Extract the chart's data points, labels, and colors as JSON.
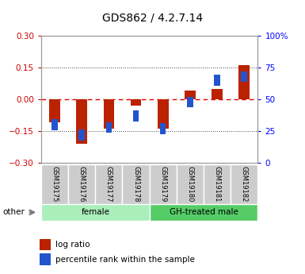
{
  "title": "GDS862 / 4.2.7.14",
  "samples": [
    "GSM19175",
    "GSM19176",
    "GSM19177",
    "GSM19178",
    "GSM19179",
    "GSM19180",
    "GSM19181",
    "GSM19182"
  ],
  "log_ratio": [
    -0.11,
    -0.21,
    -0.14,
    -0.03,
    -0.14,
    0.04,
    0.05,
    0.16
  ],
  "percentile_rank": [
    30,
    22,
    28,
    37,
    27,
    48,
    65,
    68
  ],
  "ylim_left": [
    -0.3,
    0.3
  ],
  "ylim_right": [
    0,
    100
  ],
  "yticks_left": [
    -0.3,
    -0.15,
    0,
    0.15,
    0.3
  ],
  "yticks_right": [
    0,
    25,
    50,
    75,
    100
  ],
  "ytick_labels_right": [
    "0",
    "25",
    "50",
    "75",
    "100%"
  ],
  "groups": [
    {
      "label": "female",
      "start": 0,
      "end": 3,
      "color": "#aaeebb"
    },
    {
      "label": "GH-treated male",
      "start": 4,
      "end": 7,
      "color": "#55cc66"
    }
  ],
  "bar_color": "#bb2200",
  "blue_color": "#2255cc",
  "hline_color": "#dd0000",
  "dotted_color": "#444444",
  "bg_plot": "#ffffff",
  "bg_sample": "#cccccc",
  "title_fontsize": 10,
  "legend_labels": [
    "log ratio",
    "percentile rank within the sample"
  ],
  "other_label": "other"
}
